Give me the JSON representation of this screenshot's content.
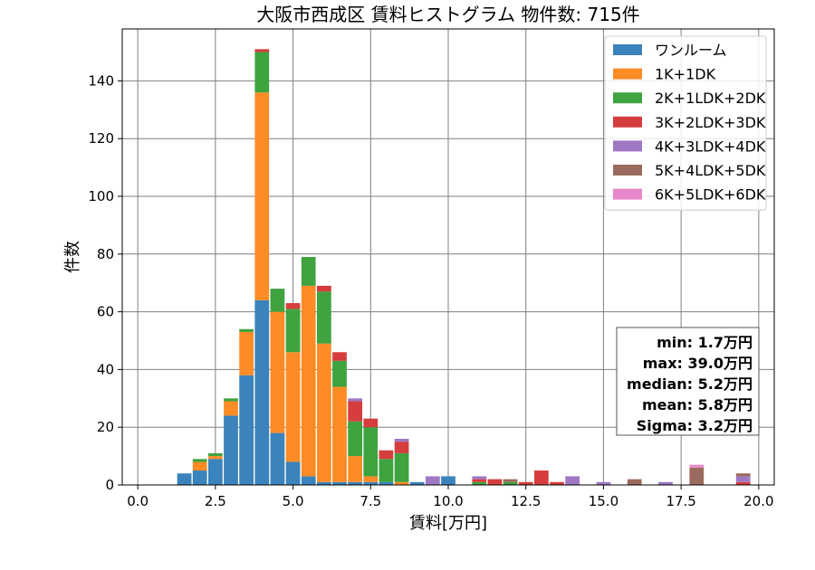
{
  "chart_data": {
    "type": "bar",
    "stacked": true,
    "title": "大阪市西成区 賃料ヒストグラム 物件数: 715件",
    "xlabel": "賃料[万円]",
    "ylabel": "件数",
    "xlim": [
      -0.5,
      20.5
    ],
    "ylim": [
      0,
      158
    ],
    "x_ticks": [
      "0.0",
      "2.5",
      "5.0",
      "7.5",
      "10.0",
      "12.5",
      "15.0",
      "17.5",
      "20.0"
    ],
    "y_ticks": [
      "0",
      "20",
      "40",
      "60",
      "80",
      "100",
      "120",
      "140"
    ],
    "grid": true,
    "legend_position": "top-right",
    "bin_width": 0.5,
    "x": [
      1.5,
      2.0,
      2.5,
      3.0,
      3.5,
      4.0,
      4.5,
      5.0,
      5.5,
      6.0,
      6.5,
      7.0,
      7.5,
      8.0,
      8.5,
      9.0,
      9.5,
      10.0,
      11.0,
      11.5,
      12.0,
      12.5,
      13.0,
      13.5,
      14.0,
      15.0,
      16.0,
      17.0,
      18.0,
      19.5
    ],
    "series": [
      {
        "name": "ワンルーム",
        "color": "#3a83bc",
        "values": [
          4,
          5,
          9,
          24,
          38,
          64,
          18,
          8,
          3,
          1,
          1,
          1,
          1,
          1,
          0,
          1,
          0,
          3,
          0,
          0,
          0,
          0,
          0,
          0,
          0,
          0,
          0,
          0,
          0,
          0
        ]
      },
      {
        "name": "1K+1DK",
        "color": "#fd8c26",
        "values": [
          0,
          3,
          1,
          5,
          15,
          72,
          42,
          38,
          66,
          48,
          33,
          9,
          2,
          0,
          1,
          0,
          0,
          0,
          0,
          0,
          0,
          0,
          0,
          0,
          0,
          0,
          0,
          0,
          0,
          0
        ]
      },
      {
        "name": "2K+1LDK+2DK",
        "color": "#3fa33f",
        "values": [
          0,
          1,
          1,
          1,
          1,
          14,
          8,
          15,
          10,
          18,
          9,
          12,
          17,
          8,
          10,
          0,
          0,
          0,
          1,
          0,
          1,
          0,
          0,
          0,
          0,
          0,
          0,
          0,
          0,
          0
        ]
      },
      {
        "name": "3K+2LDK+3DK",
        "color": "#d63d3d",
        "values": [
          0,
          0,
          0,
          0,
          0,
          1,
          0,
          2,
          0,
          2,
          3,
          7,
          3,
          3,
          4,
          0,
          0,
          0,
          1,
          2,
          0,
          1,
          5,
          1,
          0,
          0,
          0,
          0,
          0,
          1
        ]
      },
      {
        "name": "4K+3LDK+4DK",
        "color": "#9f78c5",
        "values": [
          0,
          0,
          0,
          0,
          0,
          0,
          0,
          0,
          0,
          0,
          0,
          1,
          0,
          0,
          1,
          0,
          3,
          0,
          1,
          0,
          0,
          0,
          0,
          0,
          3,
          1,
          0,
          1,
          0,
          2
        ]
      },
      {
        "name": "5K+4LDK+5DK",
        "color": "#9a6a5e",
        "values": [
          0,
          0,
          0,
          0,
          0,
          0,
          0,
          0,
          0,
          0,
          0,
          0,
          0,
          0,
          0,
          0,
          0,
          0,
          0,
          0,
          1,
          0,
          0,
          0,
          0,
          0,
          2,
          0,
          6,
          1
        ]
      },
      {
        "name": "6K+5LDK+6DK",
        "color": "#e887c9",
        "values": [
          0,
          0,
          0,
          0,
          0,
          0,
          0,
          0,
          0,
          0,
          0,
          0,
          0,
          0,
          0,
          0,
          0,
          0,
          0,
          0,
          0,
          0,
          0,
          0,
          0,
          0,
          0,
          0,
          1,
          0
        ]
      }
    ],
    "annotation": [
      "min: 1.7万円",
      "max: 39.0万円",
      "median: 5.2万円",
      "mean: 5.8万円",
      "Sigma: 3.2万円"
    ]
  }
}
